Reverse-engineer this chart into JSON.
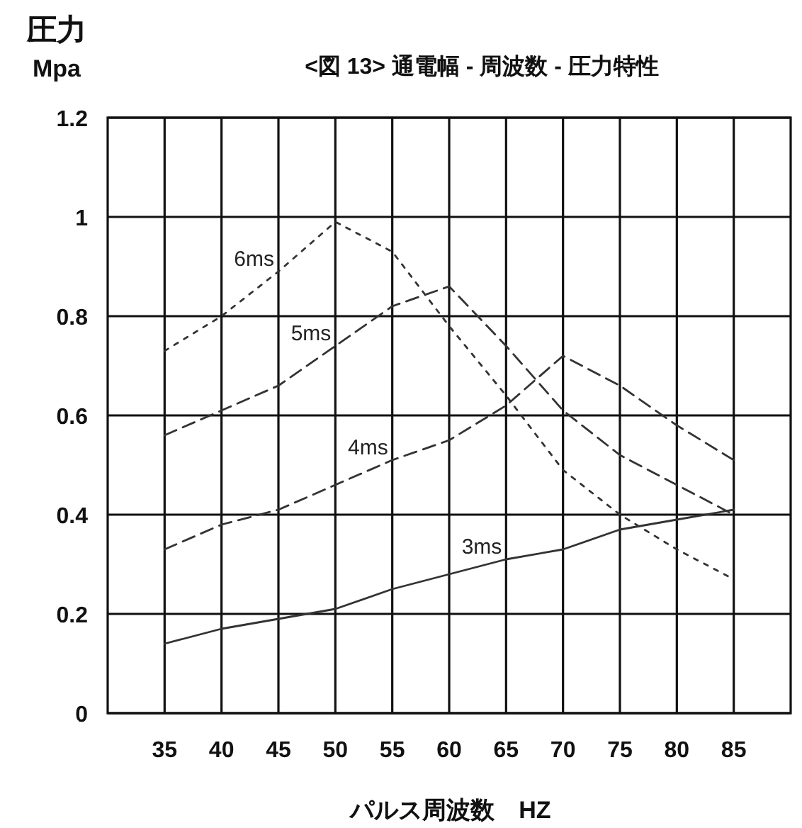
{
  "chart_data": {
    "type": "line",
    "title": "<図 13> 通電幅 - 周波数 - 圧力特性",
    "xlabel": "パルス周波数　HZ",
    "ylabel": "圧力\nMpa",
    "x": [
      35,
      40,
      45,
      50,
      55,
      60,
      65,
      70,
      75,
      80,
      85
    ],
    "series": [
      {
        "name": "6ms",
        "color": "#333333",
        "line_style": "dotted",
        "values": [
          0.73,
          0.8,
          0.89,
          0.99,
          0.93,
          0.78,
          0.64,
          0.49,
          0.4,
          0.33,
          0.27
        ]
      },
      {
        "name": "5ms",
        "color": "#333333",
        "line_style": "dashed",
        "values": [
          0.56,
          0.61,
          0.66,
          0.74,
          0.82,
          0.86,
          0.74,
          0.61,
          0.52,
          0.46,
          0.4
        ]
      },
      {
        "name": "4ms",
        "color": "#333333",
        "line_style": "dashed",
        "values": [
          0.33,
          0.38,
          0.41,
          0.46,
          0.51,
          0.55,
          0.62,
          0.72,
          0.66,
          0.58,
          0.51
        ]
      },
      {
        "name": "3ms",
        "color": "#333333",
        "line_style": "solid",
        "values": [
          0.14,
          0.17,
          0.19,
          0.21,
          0.25,
          0.28,
          0.31,
          0.33,
          0.37,
          0.39,
          0.41
        ]
      }
    ],
    "xlim": [
      30,
      90
    ],
    "ylim": [
      0,
      1.2
    ],
    "xticks": [
      35,
      40,
      45,
      50,
      55,
      60,
      65,
      70,
      75,
      80,
      85
    ],
    "yticks": [
      0,
      0.2,
      0.4,
      0.6,
      0.8,
      1,
      1.2
    ],
    "grid": true
  }
}
